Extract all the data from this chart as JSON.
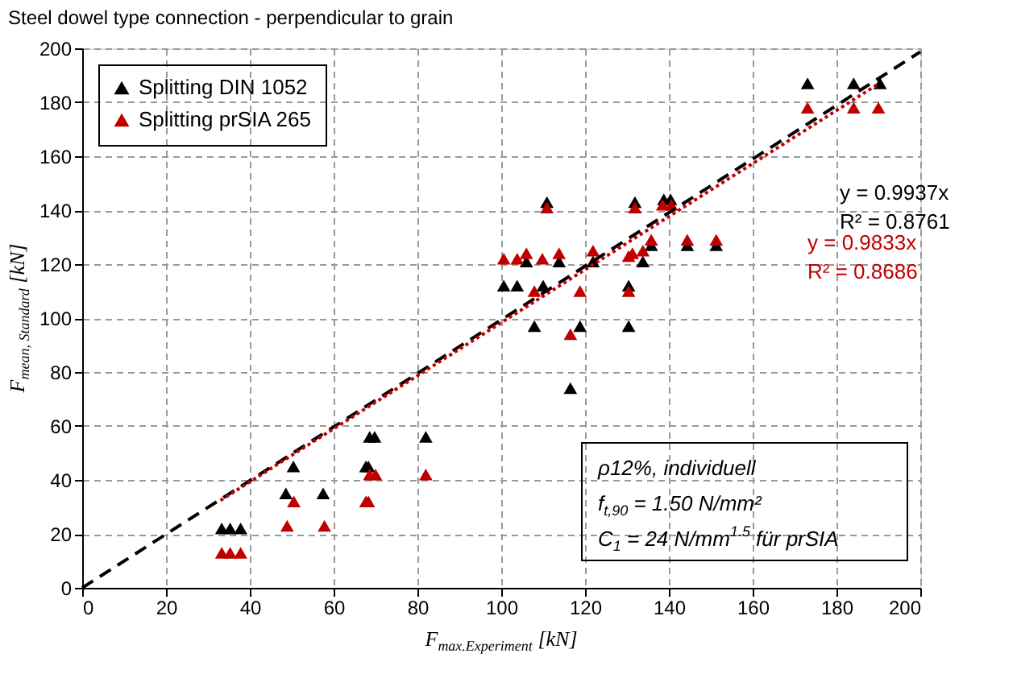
{
  "chart_data": {
    "type": "scatter",
    "title": "Steel dowel type connection - perpendicular to grain",
    "xlabel": "F$_{max.Experiment}$ [kN]",
    "ylabel": "F$_{mean, Standard}$ [kN]",
    "xlim": [
      0,
      200
    ],
    "ylim": [
      0,
      200
    ],
    "xticks": [
      0,
      20,
      40,
      60,
      80,
      100,
      120,
      140,
      160,
      180,
      200
    ],
    "yticks": [
      0,
      20,
      40,
      60,
      80,
      100,
      120,
      140,
      160,
      180,
      200
    ],
    "grid": true,
    "legend": "top left",
    "marker": "triangle",
    "series": [
      {
        "name": "Splitting DIN 1052",
        "color": "#000000",
        "x": [
          33.3,
          35.3,
          37.8,
          48.6,
          50.4,
          57.5,
          67.7,
          68.3,
          68.6,
          69.8,
          82,
          100.6,
          103.8,
          106,
          107.9,
          110,
          110.9,
          113.8,
          116.5,
          118.8,
          121.9,
          130.4,
          130.4,
          131.9,
          133.8,
          135.8,
          138.8,
          140.4,
          144.4,
          151.3,
          173.1,
          184.1,
          190.4
        ],
        "values": [
          22,
          22,
          22,
          35,
          45,
          35,
          45,
          45,
          56,
          56,
          56,
          112,
          112,
          121,
          97,
          112,
          143,
          121,
          74,
          97,
          121,
          112,
          97,
          143,
          121,
          127,
          144,
          144,
          127,
          127,
          187,
          187,
          187
        ]
      },
      {
        "name": "Splitting prSIA 265",
        "color": "#c00000",
        "x": [
          33.3,
          35.3,
          37.8,
          48.9,
          50.5,
          57.8,
          67.7,
          68.3,
          68.6,
          70,
          82,
          100.6,
          103.8,
          106,
          107.9,
          109.8,
          110.9,
          113.8,
          116.5,
          118.8,
          121.9,
          130.4,
          130.4,
          131.3,
          131.9,
          133.8,
          135.8,
          138.5,
          140.6,
          144.4,
          151.3,
          173.1,
          184.1,
          190
        ],
        "values": [
          13,
          13,
          13,
          23,
          32,
          23,
          32,
          32,
          42,
          42,
          42,
          122,
          122,
          124,
          110,
          122,
          141,
          124,
          94,
          110,
          125,
          110,
          123,
          124,
          141,
          125,
          129,
          142,
          142,
          129,
          129,
          178,
          178,
          178
        ]
      },
      {
        "type": "line",
        "marker": "none",
        "line_style": "dashed",
        "color": "#000000",
        "x": [
          0,
          200
        ],
        "values": [
          0,
          198.7
        ]
      },
      {
        "type": "line",
        "marker": "none",
        "line_style": "dotted",
        "color": "#c00000",
        "x": [
          33,
          190
        ],
        "values": [
          32.4,
          186.8
        ]
      }
    ],
    "annotations": [
      "y = 0.9937x",
      "R² = 0.8761",
      "y = 0.9833x",
      "R² = 0.8686",
      "ρ12%, individuell",
      "f$_{t,90}$ = 1.50 N/mm²",
      "C$_{1}$ = 24 N/mm$^{1.5}$ für prSIA"
    ]
  }
}
